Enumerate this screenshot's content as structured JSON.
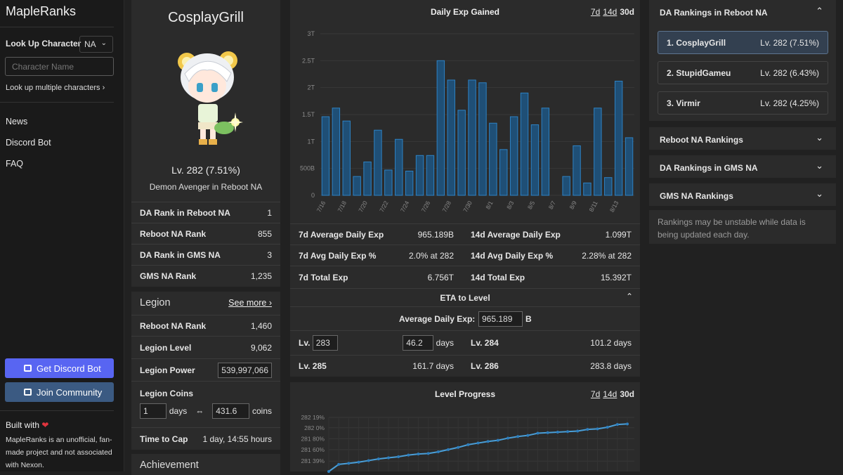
{
  "sidebar": {
    "brand": "MapleRanks",
    "lookup_label": "Look Up Character",
    "region": "NA",
    "char_placeholder": "Character Name",
    "multi_link": "Look up multiple characters ›",
    "nav": [
      "News",
      "Discord Bot",
      "FAQ"
    ],
    "discord_button": "Get Discord Bot",
    "community_button": "Join Community",
    "built_with": "Built with",
    "disclaimer": "MapleRanks is an unofficial, fan-made project and not associated with Nexon.",
    "accent": "#5865f2",
    "community_color": "#3b5a82"
  },
  "profile": {
    "name": "CosplayGrill",
    "level": "Lv. 282 (7.51%)",
    "class_world": "Demon Avenger in Reboot NA",
    "ranks": [
      {
        "label": "DA Rank in Reboot NA",
        "value": "1"
      },
      {
        "label": "Reboot NA Rank",
        "value": "855"
      },
      {
        "label": "DA Rank in GMS NA",
        "value": "3"
      },
      {
        "label": "GMS NA Rank",
        "value": "1,235"
      }
    ]
  },
  "legion": {
    "title": "Legion",
    "see_more": "See more ›",
    "rank_label": "Reboot NA Rank",
    "rank_value": "1,460",
    "level_label": "Legion Level",
    "level_value": "9,062",
    "power_label": "Legion Power",
    "power_value": "539,997,066",
    "coins_label": "Legion Coins",
    "coins_days": "1",
    "days_word": "days",
    "swap": "⇔",
    "coins_value": "431.6",
    "coins_word": "coins",
    "cap_label": "Time to Cap",
    "cap_value": "1 day, 14:55 hours"
  },
  "achievement": {
    "title": "Achievement"
  },
  "exp_chart": {
    "title": "Daily Exp Gained",
    "ranges": [
      "7d",
      "14d",
      "30d"
    ],
    "active_range": "30d",
    "bar_color": "#2d82c4"
  },
  "chart_data": [
    {
      "type": "bar",
      "title": "Daily Exp Gained",
      "xlabel": "",
      "ylabel": "",
      "ylim": [
        0,
        3.0
      ],
      "y_unit": "T",
      "yticks": [
        "0",
        "500B",
        "1T",
        "1.5T",
        "2T",
        "2.5T",
        "3T"
      ],
      "xtick_labels": [
        "7/16",
        "7/18",
        "7/20",
        "7/22",
        "7/24",
        "7/26",
        "7/28",
        "7/30",
        "8/1",
        "8/3",
        "8/5",
        "8/7",
        "8/9",
        "8/11",
        "8/13"
      ],
      "categories": [
        "7/16",
        "7/17",
        "7/18",
        "7/19",
        "7/20",
        "7/21",
        "7/22",
        "7/23",
        "7/24",
        "7/25",
        "7/26",
        "7/27",
        "7/28",
        "7/29",
        "7/30",
        "7/31",
        "8/1",
        "8/2",
        "8/3",
        "8/4",
        "8/5",
        "8/6",
        "8/7",
        "8/8",
        "8/9",
        "8/10",
        "8/11",
        "8/12",
        "8/13",
        "8/14"
      ],
      "values": [
        1.46,
        1.62,
        1.38,
        0.35,
        0.62,
        1.21,
        0.47,
        1.04,
        0.45,
        0.74,
        0.74,
        2.5,
        2.14,
        1.58,
        2.14,
        2.09,
        1.34,
        0.85,
        1.46,
        1.9,
        1.31,
        1.62,
        0,
        0.35,
        0.92,
        0.23,
        1.62,
        0.33,
        2.12,
        1.07
      ]
    },
    {
      "type": "line",
      "title": "Level Progress",
      "yticks": [
        "282 19%",
        "282 0%",
        "281 80%",
        "281 60%",
        "281 39%"
      ],
      "y_unit": "percent toward level",
      "values": [
        281.2,
        281.33,
        281.35,
        281.37,
        281.4,
        281.43,
        281.45,
        281.47,
        281.5,
        281.52,
        281.53,
        281.56,
        281.6,
        281.64,
        281.69,
        281.72,
        281.75,
        281.77,
        281.81,
        281.84,
        281.86,
        281.9,
        281.91,
        281.92,
        281.93,
        281.94,
        281.97,
        281.98,
        282.01,
        282.06,
        282.07
      ]
    }
  ],
  "exp_stats": [
    {
      "label": "7d Average Daily Exp",
      "value": "965.189B"
    },
    {
      "label": "14d Average Daily Exp",
      "value": "1.099T"
    },
    {
      "label": "7d Avg Daily Exp %",
      "value": "2.0% at 282"
    },
    {
      "label": "14d Avg Daily Exp %",
      "value": "2.28% at 282"
    },
    {
      "label": "7d Total Exp",
      "value": "6.756T"
    },
    {
      "label": "14d Total Exp",
      "value": "15.392T"
    }
  ],
  "eta": {
    "title": "ETA to Level",
    "avg_label": "Average Daily Exp:",
    "avg_value": "965.189",
    "avg_unit": "B",
    "target_lv_label": "Lv.",
    "target_lv": "283",
    "target_days": "46.2",
    "days_word": "days",
    "rows": [
      {
        "label": "Lv. 284",
        "value": "101.2 days"
      },
      {
        "label": "Lv. 285",
        "value": "161.7 days"
      },
      {
        "label": "Lv. 286",
        "value": "283.8 days"
      }
    ]
  },
  "level_progress": {
    "title": "Level Progress",
    "ranges": [
      "7d",
      "14d",
      "30d"
    ],
    "line_color": "#4a9fd8"
  },
  "rankings": {
    "title": "DA Rankings in Reboot NA",
    "items": [
      {
        "name": "1. CosplayGrill",
        "level": "Lv. 282 (7.51%)"
      },
      {
        "name": "2. StupidGameu",
        "level": "Lv. 282 (6.43%)"
      },
      {
        "name": "3. Virmir",
        "level": "Lv. 282 (4.25%)"
      }
    ],
    "accordions": [
      "Reboot NA Rankings",
      "DA Rankings in GMS NA",
      "GMS NA Rankings"
    ],
    "note": "Rankings may be unstable while data is being updated each day."
  }
}
